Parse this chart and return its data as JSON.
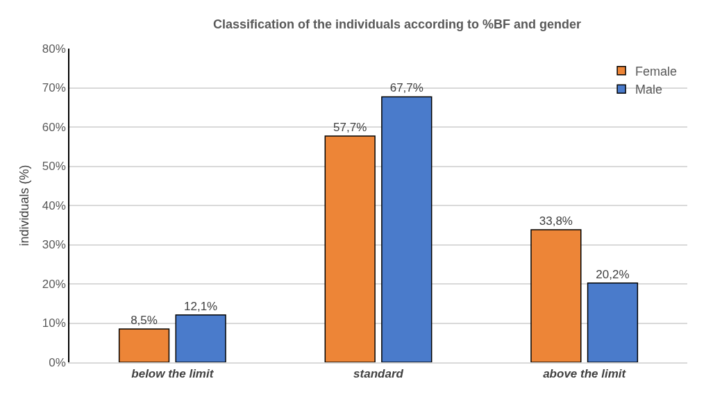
{
  "chart_data": {
    "type": "bar",
    "title": "Classification of the individuals according to %BF and gender",
    "ylabel": "individuals (%)",
    "categories": [
      "below the limit",
      "standard",
      "above the limit"
    ],
    "series": [
      {
        "name": "Female",
        "color": "#ed8537",
        "values": [
          8.5,
          57.7,
          33.8
        ],
        "value_labels": [
          "8,5%",
          "57,7%",
          "33,8%"
        ]
      },
      {
        "name": "Male",
        "color": "#4a7bcb",
        "values": [
          12.1,
          67.7,
          20.2
        ],
        "value_labels": [
          "12,1%",
          "67,7%",
          "20,2%"
        ]
      }
    ],
    "ylim": [
      0,
      80
    ],
    "yticks": [
      {
        "value": 0,
        "label": "0%"
      },
      {
        "value": 10,
        "label": "10%"
      },
      {
        "value": 20,
        "label": "20%"
      },
      {
        "value": 30,
        "label": "30%"
      },
      {
        "value": 40,
        "label": "40%"
      },
      {
        "value": 50,
        "label": "50%"
      },
      {
        "value": 60,
        "label": "60%"
      },
      {
        "value": 70,
        "label": "70%"
      },
      {
        "value": 80,
        "label": "80%"
      }
    ],
    "grid": "y",
    "legend": "top right"
  }
}
